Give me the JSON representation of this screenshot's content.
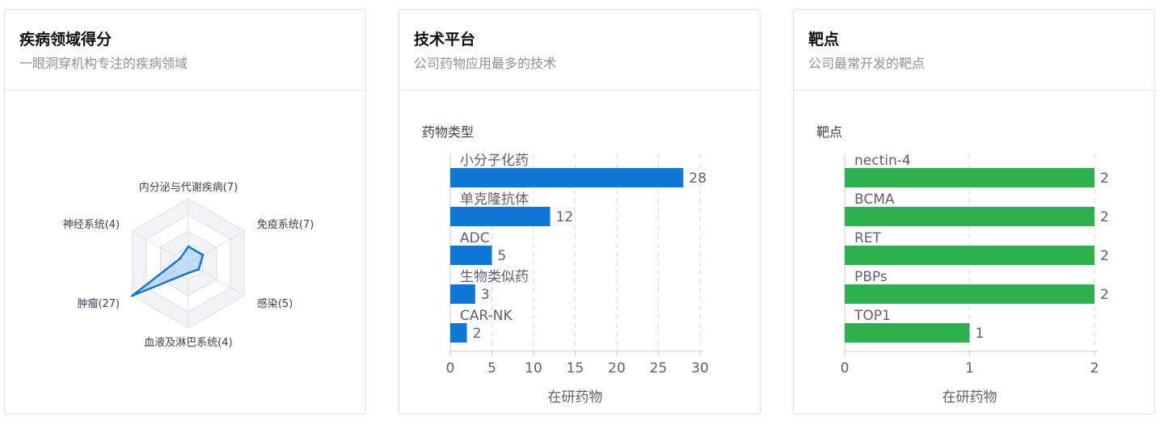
{
  "cards": [
    {
      "title": "疾病领域得分",
      "subtitle": "一眼洞穿机构专注的疾病领域"
    },
    {
      "title": "技术平台",
      "subtitle": "公司药物应用最多的技术"
    },
    {
      "title": "靶点",
      "subtitle": "公司最常开发的靶点"
    }
  ],
  "colors": {
    "blue": "#0f78d7",
    "green": "#2db14e",
    "radar_fill": "#9ec7ef",
    "text": "#1f2329",
    "muted": "#8a919f"
  },
  "chart_data": [
    {
      "type": "radar",
      "axes": [
        {
          "label": "内分泌与代谢疾病(7)",
          "value": 7
        },
        {
          "label": "免疫系统(7)",
          "value": 7
        },
        {
          "label": "感染(5)",
          "value": 5
        },
        {
          "label": "血液及淋巴系统(4)",
          "value": 4
        },
        {
          "label": "肿瘤(27)",
          "value": 27
        },
        {
          "label": "神经系统(4)",
          "value": 4
        }
      ],
      "max": 27
    },
    {
      "type": "bar",
      "orientation": "horizontal",
      "category_label": "药物类型",
      "categories": [
        "小分子化药",
        "单克隆抗体",
        "ADC",
        "生物类似药",
        "CAR-NK"
      ],
      "values": [
        28,
        12,
        5,
        3,
        2
      ],
      "xlabel": "在研药物",
      "xlim": [
        0,
        30
      ],
      "xticks": [
        0,
        5,
        10,
        15,
        20,
        25,
        30
      ],
      "grid": true
    },
    {
      "type": "bar",
      "orientation": "horizontal",
      "category_label": "靶点",
      "categories": [
        "nectin-4",
        "BCMA",
        "RET",
        "PBPs",
        "TOP1"
      ],
      "values": [
        2,
        2,
        2,
        2,
        1
      ],
      "xlabel": "在研药物",
      "xlim": [
        0,
        2
      ],
      "xticks": [
        0,
        1,
        2
      ],
      "grid": true
    }
  ]
}
